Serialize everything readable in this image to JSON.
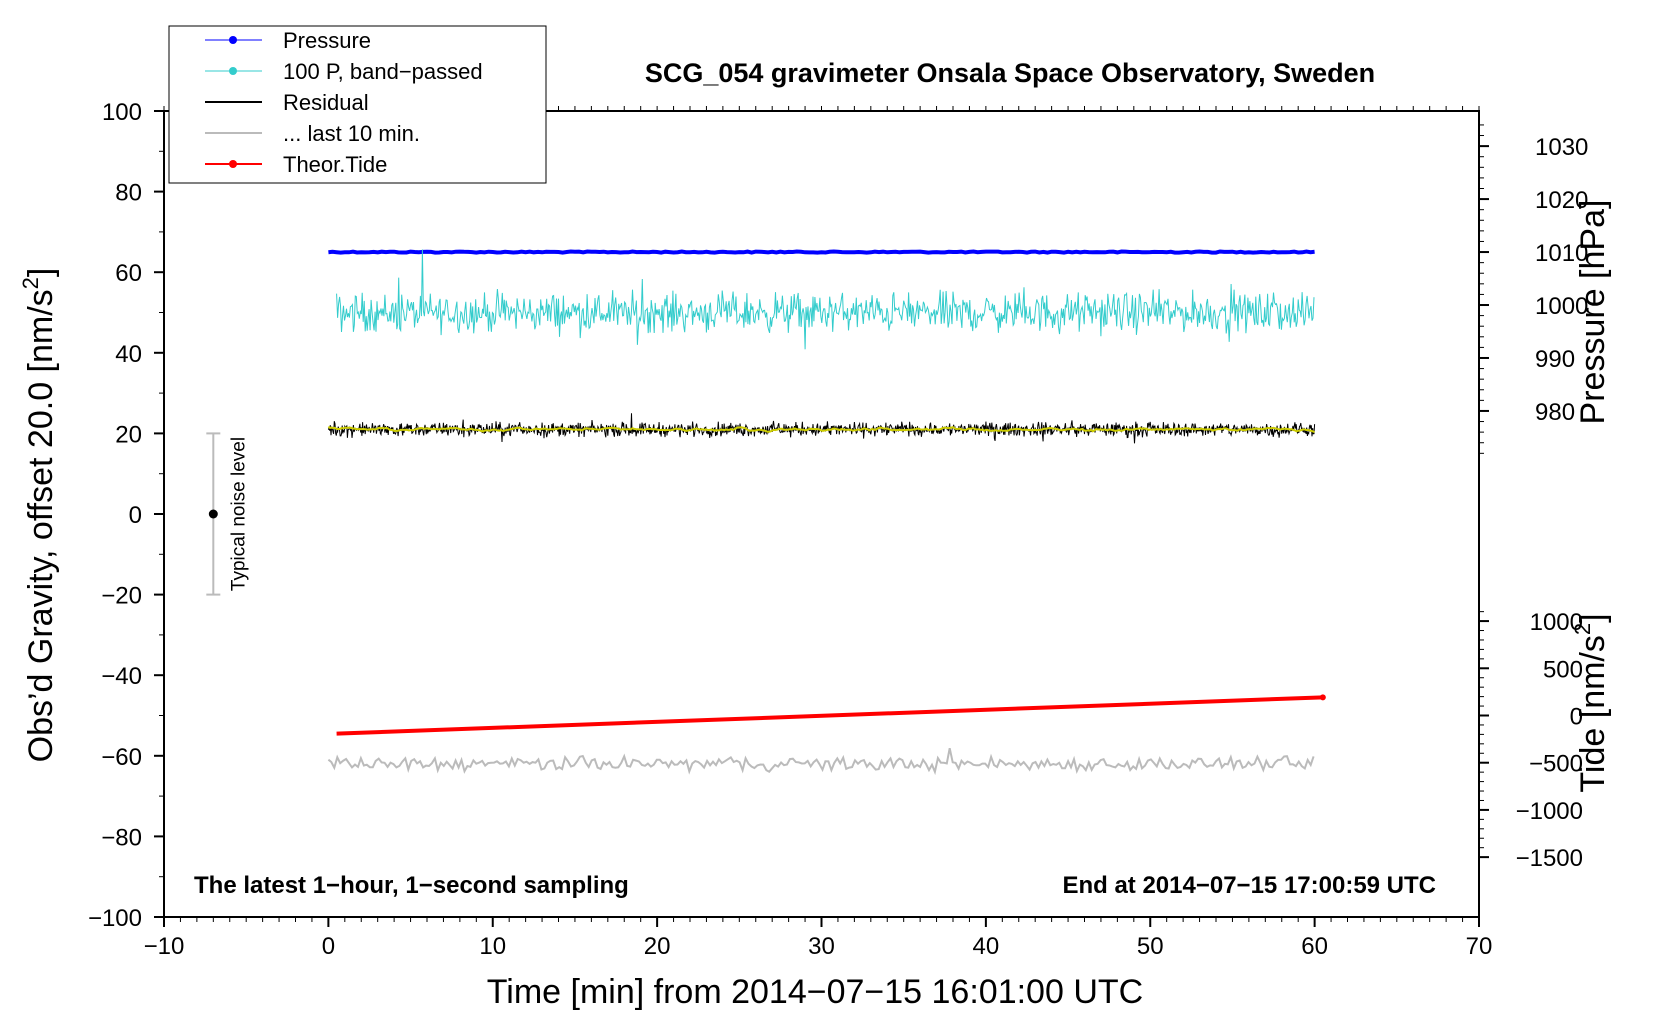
{
  "chart_data": {
    "type": "line",
    "title": "SCG_054 gravimeter Onsala Space Observatory, Sweden",
    "xlabel": "Time [min] from 2014−07−15 16:01:00 UTC",
    "ylabel": "Obs’d Gravity, offset 20.0 [nm/s²]",
    "ylabel_parts": [
      "Obs’d Gravity, offset 20.0 [nm/s",
      "2",
      "]"
    ],
    "y2_pressure_label": "Pressure [hPa]",
    "y2_tide_label": "Tide [nm/s²]",
    "y2_tide_label_parts": [
      "Tide [nm/s",
      "2",
      "]"
    ],
    "xlim": [
      -10,
      70
    ],
    "ylim": [
      -100,
      100
    ],
    "x_ticks": [
      -10,
      0,
      10,
      20,
      30,
      40,
      50,
      60,
      70
    ],
    "x_tick_labels": [
      "−10",
      "0",
      "10",
      "20",
      "30",
      "40",
      "50",
      "60",
      "70"
    ],
    "y_ticks": [
      -100,
      -80,
      -60,
      -40,
      -20,
      0,
      20,
      40,
      60,
      80,
      100
    ],
    "y_tick_labels": [
      "−100",
      "−80",
      "−60",
      "−40",
      "−20",
      "0",
      "20",
      "40",
      "60",
      "80",
      "100"
    ],
    "pressure_axis": {
      "range": [
        1035,
        970
      ],
      "ticks": [
        980,
        990,
        1000,
        1010,
        1020,
        1030
      ],
      "tick_labels": [
        "980",
        "990",
        "1000",
        "1010",
        "1020",
        "1030"
      ]
    },
    "tide_axis": {
      "range": [
        -1500,
        1000
      ],
      "ticks": [
        -1500,
        -1000,
        -500,
        0,
        500,
        1000
      ],
      "tick_labels": [
        "−1500",
        "−1000",
        "−500",
        "0",
        "500",
        "1000"
      ]
    },
    "legend": {
      "position": "top-left",
      "entries": [
        {
          "label": "Pressure",
          "color": "#0000ff",
          "marker": true
        },
        {
          "label": "100 P, band−passed",
          "color": "#33cccc",
          "marker": true
        },
        {
          "label": "Residual",
          "color": "#000000",
          "marker": false
        },
        {
          "label": "... last 10 min.",
          "color": "#bbbbbb",
          "marker": false
        },
        {
          "label": "Theor.Tide",
          "color": "#ff0000",
          "marker": true
        }
      ]
    },
    "series": [
      {
        "name": "Pressure",
        "color": "#0000ff",
        "x_range": [
          0,
          60
        ],
        "value_hpa": 1010.0,
        "plot_level_nms2": 65
      },
      {
        "name": "100 P, band−passed",
        "color": "#33cccc",
        "x_range": [
          0.5,
          60
        ],
        "mean": 50,
        "amplitude": 7
      },
      {
        "name": "Residual",
        "color": "#000000",
        "x_range": [
          0,
          60
        ],
        "mean": 21,
        "amplitude": 2.5
      },
      {
        "name": "Residual smoothed",
        "color": "#cccc00",
        "x_range": [
          0,
          60
        ],
        "mean": 21,
        "amplitude": 0.7
      },
      {
        "name": "... last 10 min.",
        "color": "#bbbbbb",
        "x_range": [
          0,
          60
        ],
        "mean": -62,
        "amplitude": 2.5
      },
      {
        "name": "Theor.Tide",
        "color": "#ff0000",
        "x": [
          0.5,
          60.5
        ],
        "values_nms2": [
          -140,
          145
        ],
        "plot_y": [
          -54.5,
          -45.5
        ]
      }
    ],
    "noise_marker": {
      "label": "Typical noise level",
      "x": -7,
      "center": 0,
      "range": [
        -20,
        20
      ]
    },
    "annotations": {
      "bottom_left": "The latest 1−hour, 1−second sampling",
      "bottom_right": "End at 2014−07−15 17:00:59 UTC"
    }
  }
}
